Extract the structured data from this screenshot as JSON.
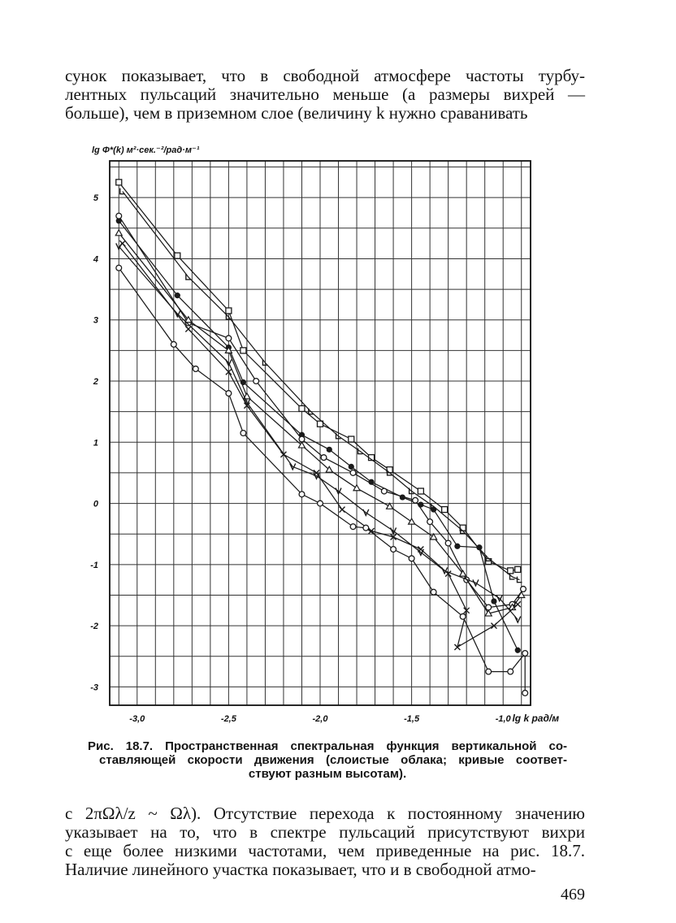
{
  "paragraph_top": {
    "lines": [
      "сунок показывает, что в свободной атмосфере частоты турбу-",
      "лентных пульсаций значительно меньше (а размеры вихрей —",
      "больше), чем в приземном слое (величину k нужно сраванивать"
    ]
  },
  "figure": {
    "caption_lines": [
      "Рис. 18.7. Пространственная спектральная функция вертикальной со-",
      "ставляющей скорости движения (слоистые облака; кривые соответ-",
      "ствуют разным высотам)."
    ]
  },
  "paragraph_bottom": {
    "lines": [
      "с 2πΩλ/z ~ Ωλ). Отсутствие перехода к постоянному значению",
      "указывает на то, что в спектре пульсаций присутствуют вихри",
      "с еще более низкими частотами, чем приведенные на рис. 18.7.",
      "Наличие линейного участка показывает, что и в свободной атмо-"
    ]
  },
  "page_number": "469",
  "chart_data": {
    "type": "line",
    "title": "",
    "ylabel": "lg Φ*(k) м²·сек.⁻²/рад·м⁻¹",
    "xlabel": "lg k рад/м",
    "xlim": [
      -3.15,
      -0.85
    ],
    "ylim": [
      -3.3,
      5.6
    ],
    "x_ticks": [
      -3.0,
      -2.5,
      -2.0,
      -1.5,
      -1.0
    ],
    "x_tick_labels": [
      "-3,0",
      "-2,5",
      "-2,0",
      "-1,5",
      "-1,0"
    ],
    "y_ticks": [
      5,
      4,
      3,
      2,
      1,
      0,
      -1,
      -2,
      -3
    ],
    "y_tick_labels": [
      "5",
      "4",
      "3",
      "2",
      "1",
      "0",
      "-1",
      "-2",
      "-3"
    ],
    "grid": true,
    "color": "#1a1a1a",
    "series": [
      {
        "marker": "square",
        "points": [
          [
            -3.1,
            5.25
          ],
          [
            -2.78,
            4.05
          ],
          [
            -2.5,
            3.15
          ],
          [
            -2.42,
            2.5
          ],
          [
            -2.1,
            1.55
          ],
          [
            -2.0,
            1.3
          ],
          [
            -1.83,
            1.05
          ],
          [
            -1.72,
            0.75
          ],
          [
            -1.62,
            0.55
          ],
          [
            -1.45,
            0.2
          ],
          [
            -1.32,
            -0.1
          ],
          [
            -1.22,
            -0.4
          ],
          [
            -1.08,
            -0.95
          ],
          [
            -0.96,
            -1.1
          ],
          [
            -0.92,
            -1.08
          ]
        ]
      },
      {
        "marker": "open-l",
        "points": [
          [
            -3.08,
            5.1
          ],
          [
            -2.72,
            3.7
          ],
          [
            -2.5,
            3.05
          ],
          [
            -2.3,
            2.3
          ],
          [
            -2.05,
            1.5
          ],
          [
            -1.9,
            1.1
          ],
          [
            -1.78,
            0.85
          ],
          [
            -1.62,
            0.5
          ],
          [
            -1.5,
            0.2
          ],
          [
            -1.38,
            -0.05
          ],
          [
            -1.22,
            -0.45
          ],
          [
            -1.08,
            -0.9
          ],
          [
            -0.95,
            -1.2
          ],
          [
            -0.91,
            -1.25
          ]
        ]
      },
      {
        "marker": "filled-circle",
        "points": [
          [
            -3.1,
            4.62
          ],
          [
            -2.78,
            3.4
          ],
          [
            -2.5,
            2.55
          ],
          [
            -2.42,
            1.98
          ],
          [
            -2.1,
            1.12
          ],
          [
            -1.95,
            0.88
          ],
          [
            -1.83,
            0.6
          ],
          [
            -1.72,
            0.35
          ],
          [
            -1.55,
            0.1
          ],
          [
            -1.45,
            -0.02
          ],
          [
            -1.38,
            -0.1
          ],
          [
            -1.25,
            -0.7
          ],
          [
            -1.13,
            -0.72
          ],
          [
            -1.05,
            -1.6
          ],
          [
            -0.92,
            -2.4
          ]
        ]
      },
      {
        "marker": "open-circle",
        "points": [
          [
            -3.1,
            4.7
          ],
          [
            -2.72,
            2.95
          ],
          [
            -2.5,
            2.7
          ],
          [
            -2.35,
            2.0
          ],
          [
            -2.1,
            1.05
          ],
          [
            -1.98,
            0.75
          ],
          [
            -1.82,
            0.5
          ],
          [
            -1.65,
            0.2
          ],
          [
            -1.48,
            0.05
          ],
          [
            -1.4,
            -0.3
          ],
          [
            -1.3,
            -0.65
          ],
          [
            -1.2,
            -1.25
          ],
          [
            -1.08,
            -1.7
          ],
          [
            -0.95,
            -1.65
          ],
          [
            -0.89,
            -1.4
          ]
        ]
      },
      {
        "marker": "triangle",
        "points": [
          [
            -3.1,
            4.42
          ],
          [
            -2.72,
            3.0
          ],
          [
            -2.5,
            2.5
          ],
          [
            -2.4,
            1.75
          ],
          [
            -2.1,
            0.95
          ],
          [
            -1.95,
            0.55
          ],
          [
            -1.8,
            0.25
          ],
          [
            -1.62,
            -0.05
          ],
          [
            -1.5,
            -0.3
          ],
          [
            -1.38,
            -0.55
          ],
          [
            -1.22,
            -1.15
          ],
          [
            -1.08,
            -1.8
          ],
          [
            -0.95,
            -1.7
          ],
          [
            -0.9,
            -1.5
          ]
        ]
      },
      {
        "marker": "v",
        "points": [
          [
            -3.1,
            4.2
          ],
          [
            -2.78,
            3.1
          ],
          [
            -2.5,
            2.3
          ],
          [
            -2.4,
            1.65
          ],
          [
            -2.15,
            0.6
          ],
          [
            -2.02,
            0.45
          ],
          [
            -1.9,
            0.2
          ],
          [
            -1.75,
            -0.15
          ],
          [
            -1.6,
            -0.45
          ],
          [
            -1.45,
            -0.8
          ],
          [
            -1.32,
            -1.1
          ],
          [
            -1.15,
            -1.3
          ],
          [
            -1.02,
            -1.55
          ],
          [
            -0.92,
            -1.9
          ]
        ]
      },
      {
        "marker": "x",
        "points": [
          [
            -3.08,
            4.25
          ],
          [
            -2.72,
            2.85
          ],
          [
            -2.5,
            2.15
          ],
          [
            -2.4,
            1.6
          ],
          [
            -2.2,
            0.8
          ],
          [
            -2.02,
            0.5
          ],
          [
            -1.88,
            -0.1
          ],
          [
            -1.72,
            -0.45
          ],
          [
            -1.6,
            -0.55
          ],
          [
            -1.45,
            -0.75
          ],
          [
            -1.3,
            -1.15
          ],
          [
            -1.2,
            -1.75
          ],
          [
            -1.25,
            -2.35
          ],
          [
            -1.05,
            -2.0
          ],
          [
            -0.92,
            -1.65
          ]
        ]
      },
      {
        "marker": "open-circle",
        "points": [
          [
            -3.1,
            3.85
          ],
          [
            -2.8,
            2.6
          ],
          [
            -2.68,
            2.2
          ],
          [
            -2.5,
            1.8
          ],
          [
            -2.42,
            1.15
          ],
          [
            -2.1,
            0.15
          ],
          [
            -2.0,
            0.0
          ],
          [
            -1.82,
            -0.38
          ],
          [
            -1.75,
            -0.4
          ],
          [
            -1.6,
            -0.75
          ],
          [
            -1.5,
            -0.9
          ],
          [
            -1.38,
            -1.45
          ],
          [
            -1.22,
            -1.85
          ],
          [
            -1.08,
            -2.75
          ],
          [
            -0.96,
            -2.75
          ],
          [
            -0.88,
            -2.45
          ],
          [
            -0.88,
            -3.1
          ]
        ]
      }
    ]
  }
}
